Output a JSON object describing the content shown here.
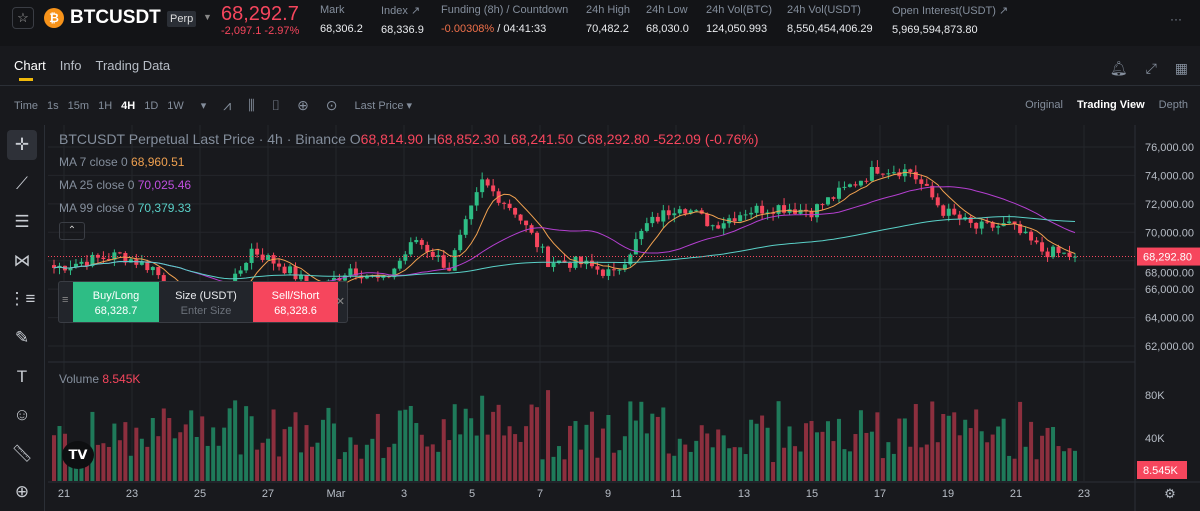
{
  "header": {
    "symbol": "BTCUSDT",
    "contract_badge": "Perp",
    "last_price": "68,292.7",
    "change": "-2,097.1 -2.97%",
    "stats": [
      {
        "label": "Mark",
        "value": "68,306.2"
      },
      {
        "label": "Index ↗",
        "value": "68,336.9"
      },
      {
        "label": "Funding (8h) / Countdown",
        "value": "-0.00308%",
        "value2": " / 04:41:33"
      },
      {
        "label": "24h High",
        "value": "70,482.2"
      },
      {
        "label": "24h Low",
        "value": "68,030.0"
      },
      {
        "label": "24h Vol(BTC)",
        "value": "124,050.993"
      },
      {
        "label": "24h Vol(USDT)",
        "value": "8,550,454,406.29"
      },
      {
        "label": "Open Interest(USDT) ↗",
        "value": "5,969,594,873.80"
      }
    ],
    "more": "···"
  },
  "tabs": [
    "Chart",
    "Info",
    "Trading Data"
  ],
  "toolbar": {
    "time": "Time",
    "intervals": [
      "1s",
      "15m",
      "1H",
      "4H",
      "1D",
      "1W"
    ],
    "active_interval": "4H",
    "price_type": "Last Price ▾"
  },
  "views": [
    "Original",
    "Trading View",
    "Depth"
  ],
  "legend": {
    "title": "BTCUSDT Perpetual Last Price · 4h · Binance",
    "o": "O",
    "ov": "68,814.90",
    "h": "H",
    "hv": "68,852.30",
    "l": "L",
    "lv": "68,241.50",
    "c": "C",
    "cv": "68,292.80",
    "chg": "-522.09 (-0.76%)",
    "ma7": "MA 7 close 0",
    "ma7v": "68,960.51",
    "ma25": "MA 25 close 0",
    "ma25v": "70,025.46",
    "ma99": "MA 99 close 0",
    "ma99v": "70,379.33",
    "volume": "Volume",
    "volume_v": "8.545K"
  },
  "trade_panel": {
    "buy": "Buy/Long",
    "buy_price": "68,328.7",
    "size": "Size (USDT)",
    "size_placeholder": "Enter Size",
    "sell": "Sell/Short",
    "sell_price": "68,328.6"
  },
  "logo": "TV",
  "colors": {
    "up": "#2ebd85",
    "down": "#f6465d",
    "ma7": "#f0a150",
    "ma25": "#b43fd0",
    "ma99": "#5ad1c8"
  },
  "chart_data": {
    "type": "candlestick",
    "interval": "4h",
    "price_ticks": [
      "76,000.00",
      "74,000.00",
      "72,000.00",
      "70,000.00",
      "68,000.00",
      "66,000.00",
      "64,000.00",
      "62,000.00"
    ],
    "price_tick_values": [
      76000,
      74000,
      72000,
      70000,
      68000,
      66000,
      64000,
      62000
    ],
    "last_label": "68,292.80",
    "last_value": 68292.8,
    "volume_ticks": [
      "80K",
      "40K"
    ],
    "volume_tick_values": [
      80000,
      40000
    ],
    "volume_last_label": "8.545K",
    "x_labels": [
      "21",
      "23",
      "25",
      "27",
      "Mar",
      "3",
      "5",
      "7",
      "9",
      "11",
      "13",
      "15",
      "17",
      "19",
      "21",
      "23"
    ],
    "daily_close_waypoints": [
      67500,
      68000,
      68400,
      67500,
      64500,
      64500,
      68800,
      67500,
      65800,
      67500,
      66500,
      69500,
      67500,
      73500,
      71500,
      68000,
      67800,
      67000,
      70500,
      72000,
      70500,
      71500,
      71800,
      71500,
      73000,
      74500,
      74300,
      71500,
      70300,
      70500,
      68700,
      68292
    ]
  }
}
